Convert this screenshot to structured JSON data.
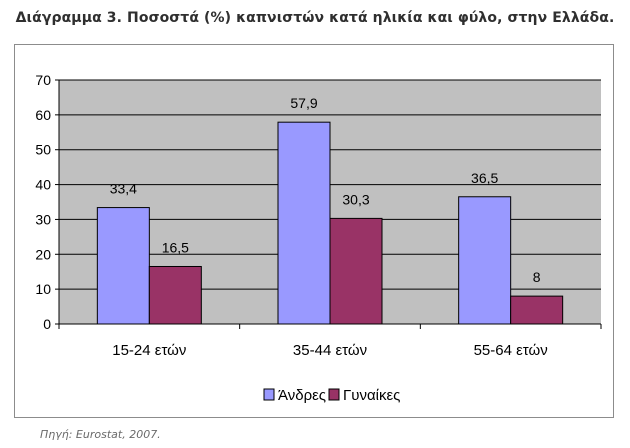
{
  "title": "Διάγραμμα 3. Ποσοστά (%) καπνιστών κατά ηλικία και φύλο, στην Ελλάδα.",
  "source": "Πηγή: Eurostat, 2007.",
  "colors": {
    "plot_bg": "#c0c0c0",
    "men": "#9999ff",
    "women": "#993366",
    "grid": "#000000"
  },
  "chart_data": {
    "type": "bar",
    "categories": [
      "15-24 ετών",
      "35-44 ετών",
      "55-64 ετών"
    ],
    "series": [
      {
        "name": "Άνδρες",
        "values": [
          33.4,
          57.9,
          36.5
        ],
        "labels": [
          "33,4",
          "57,9",
          "36,5"
        ]
      },
      {
        "name": "Γυναίκες",
        "values": [
          16.5,
          30.3,
          8
        ],
        "labels": [
          "16,5",
          "30,3",
          "8"
        ]
      }
    ],
    "yticks": [
      0,
      10,
      20,
      30,
      40,
      50,
      60,
      70
    ],
    "ylim": [
      0,
      70
    ],
    "grid": true,
    "legend": "bottom-center"
  }
}
